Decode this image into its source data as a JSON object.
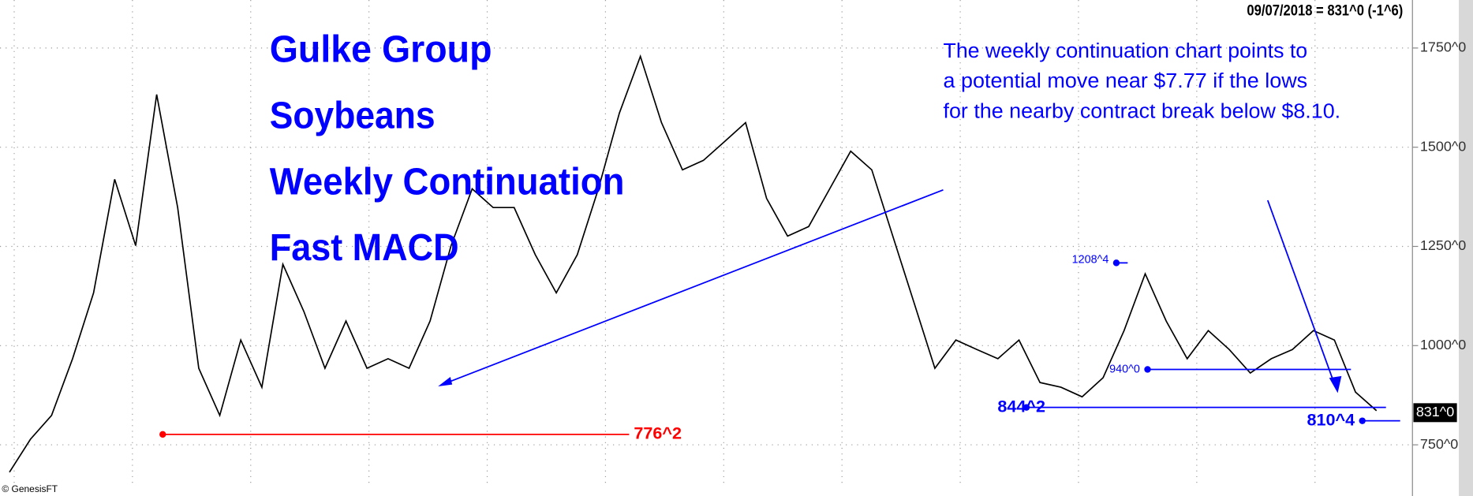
{
  "chart_data": {
    "type": "line",
    "title_lines": [
      "Gulke Group",
      "Soybeans",
      "Weekly Continuation",
      "Fast MACD"
    ],
    "header": "09/07/2018 = 831^0 (-1^6)",
    "note_lines": [
      "The weekly continuation chart points to",
      "a potential move near $7.77 if the lows",
      "for the nearby contract break below $8.10."
    ],
    "watermark": "© GenesisFT",
    "color": "#000000",
    "values": [
      681,
      764,
      824,
      967,
      1133,
      1419,
      1252,
      1633,
      1348,
      943,
      824,
      1014,
      895,
      1205,
      1086,
      943,
      1062,
      943,
      967,
      943,
      1062,
      1252,
      1395,
      1348,
      1348,
      1229,
      1133,
      1229,
      1395,
      1586,
      1729,
      1562,
      1443,
      1467,
      1514,
      1562,
      1371,
      1276,
      1300,
      1395,
      1490,
      1443,
      1276,
      1110,
      943,
      1014,
      990,
      967,
      1014,
      907,
      895,
      871,
      919,
      1038,
      1181,
      1062,
      967,
      1038,
      990,
      931,
      967,
      990,
      1038,
      1014,
      883,
      836
    ],
    "ylim": [
      621,
      1871
    ],
    "yticks": [
      {
        "value": 750,
        "label": "750^0"
      },
      {
        "value": 1000,
        "label": "1000^0"
      },
      {
        "value": 1250,
        "label": "1250^0"
      },
      {
        "value": 1500,
        "label": "1500^0"
      },
      {
        "value": 1750,
        "label": "1750^0"
      }
    ],
    "grid": true,
    "levels": [
      {
        "label": "776^2",
        "value": 776.25,
        "color": "#ff0000"
      },
      {
        "label": "844^2",
        "value": 844.25,
        "color": "#0000ff"
      },
      {
        "label": "940^0",
        "value": 940,
        "color": "#0000ff"
      },
      {
        "label": "1208^4",
        "value": 1208.5,
        "color": "#0000ff"
      },
      {
        "label": "810^4",
        "value": 810.5,
        "color": "#0000ff"
      }
    ],
    "last_price": {
      "value": 831,
      "label": "831^0"
    }
  }
}
